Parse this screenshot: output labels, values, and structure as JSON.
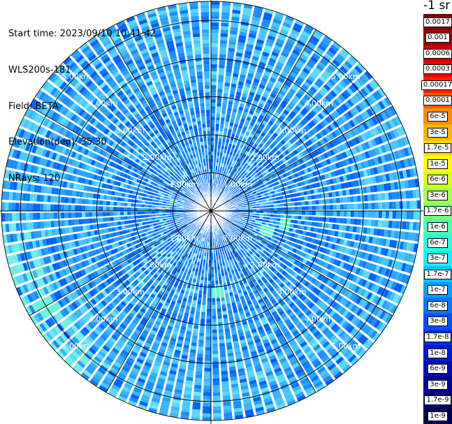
{
  "info": {
    "start_time": "Start time: 2023/09/10 10:41:42",
    "instrument": "WLS200s-181",
    "field": "Field: BETA",
    "elevation": "Elevation(deg): 35.30",
    "nrays": "NRays: 120"
  },
  "colorbar": {
    "unit": "-1 sr",
    "labels": [
      "0.0017",
      "0.001",
      "0.0006",
      "0.0003",
      "0.00017",
      "0.0001",
      "6e-5",
      "3e-5",
      "1.7e-5",
      "1e-5",
      "6e-6",
      "3e-6",
      "1.7e-6",
      "1e-6",
      "6e-7",
      "3e-7",
      "1.7e-7",
      "1e-7",
      "6e-8",
      "3e-8",
      "1.7e-8",
      "1e-8",
      "6e-9",
      "3e-9",
      "1.7e-9",
      "1e-9"
    ],
    "colors": [
      "#7a0000",
      "#9a0000",
      "#c80000",
      "#ee0000",
      "#ff2200",
      "#ff5a00",
      "#ff8c00",
      "#ffb400",
      "#ffd800",
      "#ffff00",
      "#d8ff1a",
      "#a8ff4a",
      "#78ff7a",
      "#48ffb0",
      "#28ffd8",
      "#10f0ff",
      "#00c8ff",
      "#00a0ff",
      "#0078ff",
      "#0050ff",
      "#0030f0",
      "#0018d8",
      "#0008b8",
      "#00009a",
      "#000078",
      "#000050"
    ]
  },
  "rings": {
    "labels": [
      "1.00km",
      "2.00km",
      "3.00km",
      "4.00km",
      "5.00km"
    ]
  },
  "chart_data": {
    "type": "heatmap",
    "title": "",
    "field": "BETA",
    "instrument": "WLS200s-181",
    "start_time": "2023/09/10 10:41:42",
    "elevation_deg": 35.3,
    "n_rays": 120,
    "range_rings_km": [
      1.0,
      2.0,
      3.0,
      4.0,
      5.0
    ],
    "max_range_km": 5.5,
    "color_scale": "log",
    "value_range": [
      1e-09,
      0.0017
    ],
    "dominant_value": 1e-07,
    "note_regions": [
      {
        "azimuth_deg": 110,
        "range_km": 1.5,
        "value": 3e-07
      },
      {
        "azimuth_deg": 100,
        "range_km": 1.9,
        "value": 3e-07
      },
      {
        "azimuth_deg": 175,
        "range_km": 2.1,
        "value": 3e-07
      },
      {
        "azimuth_deg": 240,
        "range_km": 5.0,
        "value": 1.7e-07
      }
    ]
  }
}
